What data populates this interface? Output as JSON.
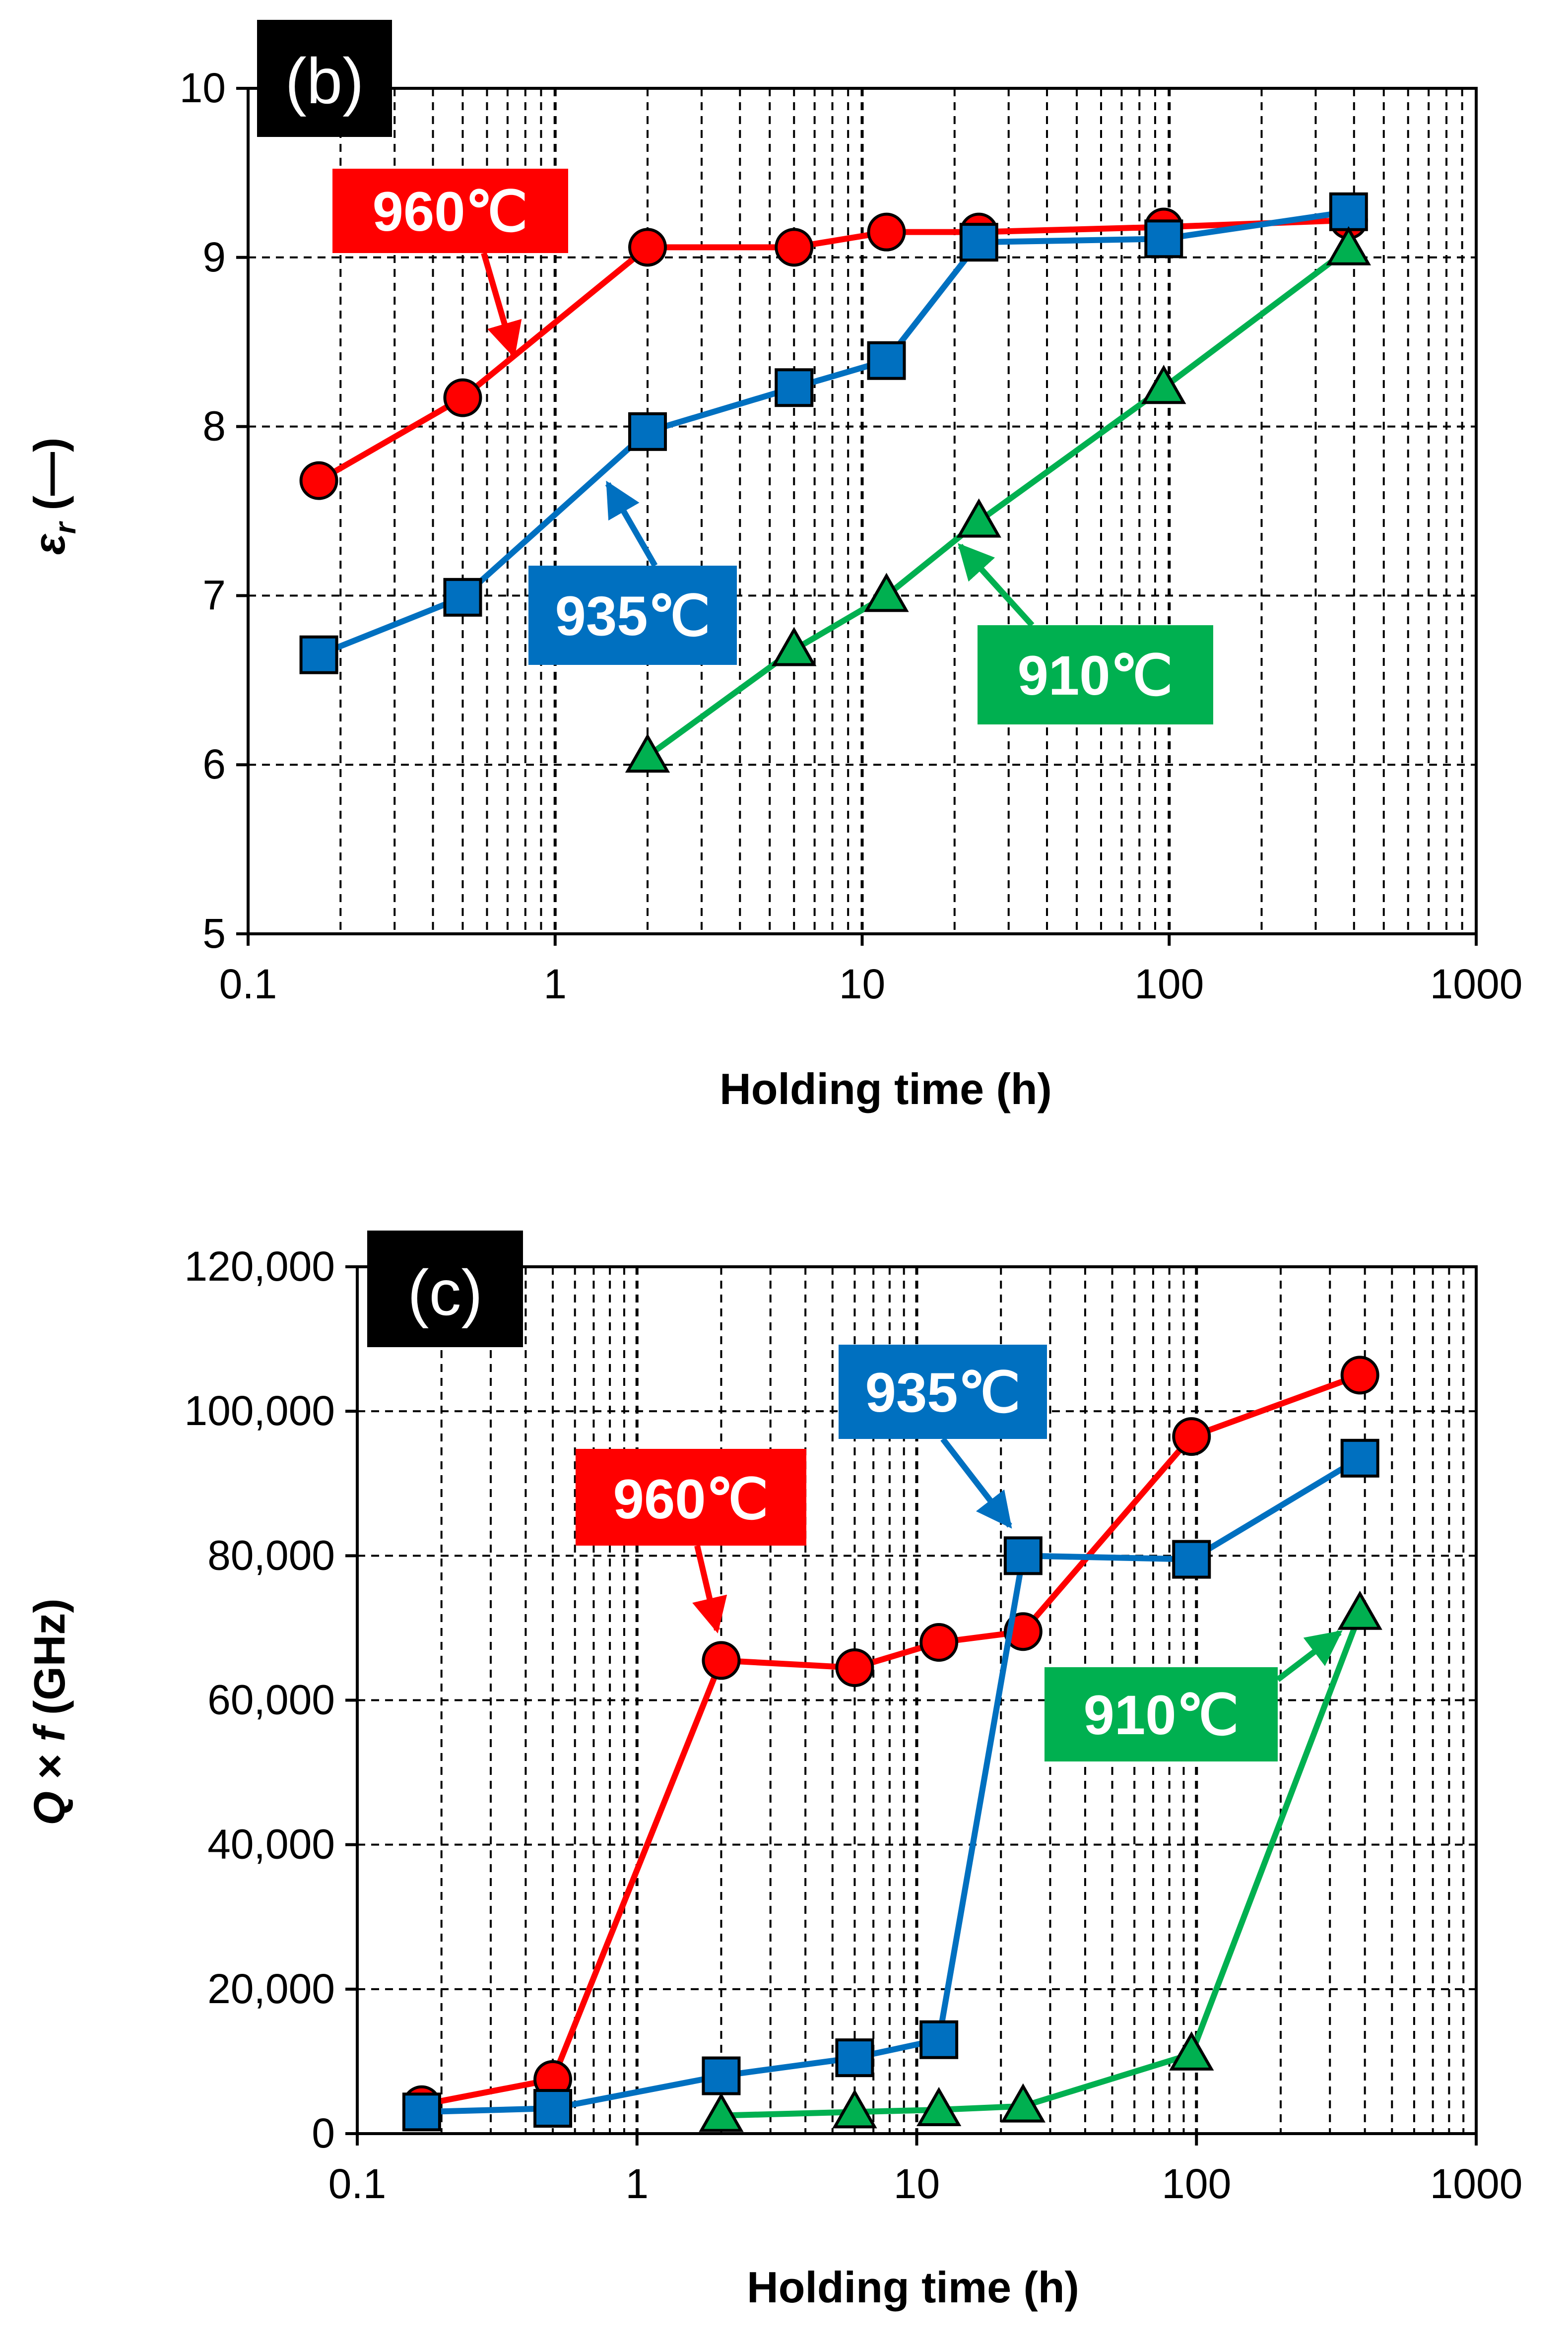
{
  "colors": {
    "960": "#ff0000",
    "935": "#0070c0",
    "910": "#00b050"
  },
  "chart_data": [
    {
      "type": "line",
      "panel_label": "(b)",
      "title": "",
      "xlabel": "Holding time (h)",
      "ylabel_symbol": "ε",
      "ylabel_sub": "r",
      "ylabel_rest": " (—)",
      "xscale": "log",
      "xlim": [
        0.1,
        1000
      ],
      "ylim": [
        5,
        10
      ],
      "xticks": [
        0.1,
        1,
        10,
        100,
        1000
      ],
      "xtick_labels": [
        "0.1",
        "1",
        "10",
        "100",
        "1000"
      ],
      "yticks": [
        5,
        6,
        7,
        8,
        9,
        10
      ],
      "ytick_labels": [
        "5",
        "6",
        "7",
        "8",
        "9",
        "10"
      ],
      "grid": true,
      "series": [
        {
          "name": "960℃",
          "marker": "circle",
          "color": "#ff0000",
          "x": [
            0.17,
            0.5,
            2,
            6,
            12,
            24,
            96,
            384
          ],
          "y": [
            7.68,
            8.17,
            9.06,
            9.06,
            9.15,
            9.15,
            9.18,
            9.22
          ]
        },
        {
          "name": "935℃",
          "marker": "square",
          "color": "#0070c0",
          "x": [
            0.17,
            0.5,
            2,
            6,
            12,
            24,
            96,
            384
          ],
          "y": [
            6.65,
            6.99,
            7.97,
            8.23,
            8.39,
            9.09,
            9.11,
            9.27
          ]
        },
        {
          "name": "910℃",
          "marker": "triangle",
          "color": "#00b050",
          "x": [
            2,
            6,
            12,
            24,
            96,
            384
          ],
          "y": [
            6.05,
            6.68,
            7.0,
            7.44,
            8.23,
            9.05
          ]
        }
      ]
    },
    {
      "type": "line",
      "panel_label": "(c)",
      "title": "",
      "xlabel": "Holding time (h)",
      "ylabel_q": "Q",
      "ylabel_times": "×",
      "ylabel_f": "f",
      "ylabel_rest": " (GHz)",
      "xscale": "log",
      "xlim": [
        0.1,
        1000
      ],
      "ylim": [
        0,
        120000
      ],
      "xticks": [
        0.1,
        1,
        10,
        100,
        1000
      ],
      "xtick_labels": [
        "0.1",
        "1",
        "10",
        "100",
        "1000"
      ],
      "yticks": [
        0,
        20000,
        40000,
        60000,
        80000,
        100000,
        120000
      ],
      "ytick_labels": [
        "0",
        "20,000",
        "40,000",
        "60,000",
        "80,000",
        "100,000",
        "120,000"
      ],
      "grid": true,
      "series": [
        {
          "name": "960℃",
          "marker": "circle",
          "color": "#ff0000",
          "x": [
            0.17,
            0.5,
            2,
            6,
            12,
            24,
            96,
            384
          ],
          "y": [
            4000,
            7500,
            65500,
            64500,
            68000,
            69500,
            96500,
            105000
          ]
        },
        {
          "name": "935℃",
          "marker": "square",
          "color": "#0070c0",
          "x": [
            0.17,
            0.5,
            2,
            6,
            12,
            24,
            96,
            384
          ],
          "y": [
            3000,
            3500,
            8000,
            10500,
            13000,
            80000,
            79500,
            93500
          ]
        },
        {
          "name": "910℃",
          "marker": "triangle",
          "color": "#00b050",
          "x": [
            2,
            6,
            12,
            24,
            96,
            384
          ],
          "y": [
            2500,
            3000,
            3300,
            3800,
            11000,
            72000
          ]
        }
      ]
    }
  ],
  "callouts_b": [
    {
      "label": "960℃"
    },
    {
      "label": "935℃"
    },
    {
      "label": "910℃"
    }
  ],
  "callouts_c": [
    {
      "label": "935℃"
    },
    {
      "label": "960℃"
    },
    {
      "label": "910℃"
    }
  ]
}
